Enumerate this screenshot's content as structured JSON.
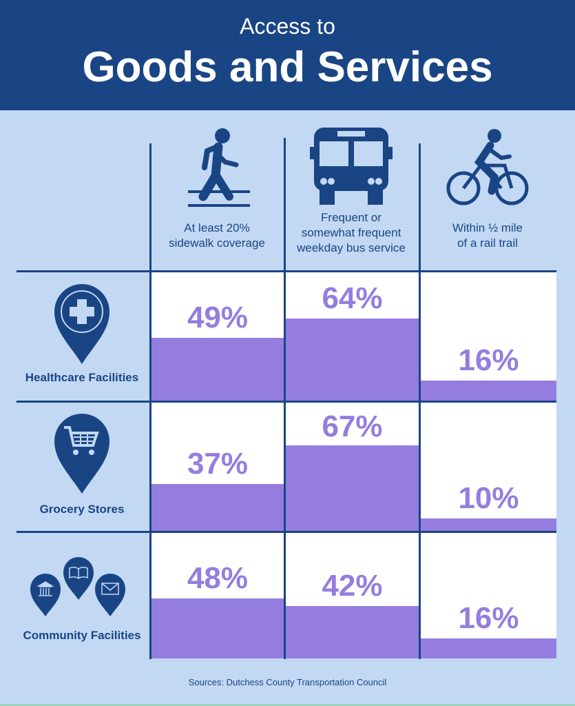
{
  "header": {
    "subtitle": "Access to",
    "title": "Goods and Services"
  },
  "colors": {
    "header": "#1a4584",
    "background": "#c2d8f3",
    "bar": "#957ddf",
    "cell": "#ffffff"
  },
  "chart_data": {
    "type": "table",
    "columns": [
      {
        "label": "At least 20% sidewalk coverage",
        "line1": "At least 20%",
        "line2": "sidewalk coverage",
        "icon": "pedestrian-icon"
      },
      {
        "label": "Frequent or somewhat frequent weekday bus service",
        "line1": "Frequent or",
        "line2": "somewhat frequent",
        "line3": "weekday bus service",
        "icon": "bus-icon"
      },
      {
        "label": "Within ½ mile of a rail trail",
        "line1": "Within  ½ mile",
        "line2": "of a rail trail",
        "icon": "bicycle-icon"
      }
    ],
    "rows": [
      {
        "label": "Healthcare Facilities",
        "icon": "healthcare-pin-icon",
        "values": [
          49,
          64,
          16
        ],
        "labels": [
          "49%",
          "64%",
          "16%"
        ]
      },
      {
        "label": "Grocery Stores",
        "icon": "shopping-cart-pin-icon",
        "values": [
          37,
          67,
          10
        ],
        "labels": [
          "37%",
          "67%",
          "10%"
        ]
      },
      {
        "label": "Community Facilities",
        "icon": "community-pins-icon",
        "values": [
          48,
          42,
          16
        ],
        "labels": [
          "48%",
          "42%",
          "16%"
        ]
      }
    ],
    "unit": "%",
    "ylim": [
      0,
      100
    ]
  },
  "footer": {
    "source": "Sources: Dutchess County Transportation Council"
  }
}
